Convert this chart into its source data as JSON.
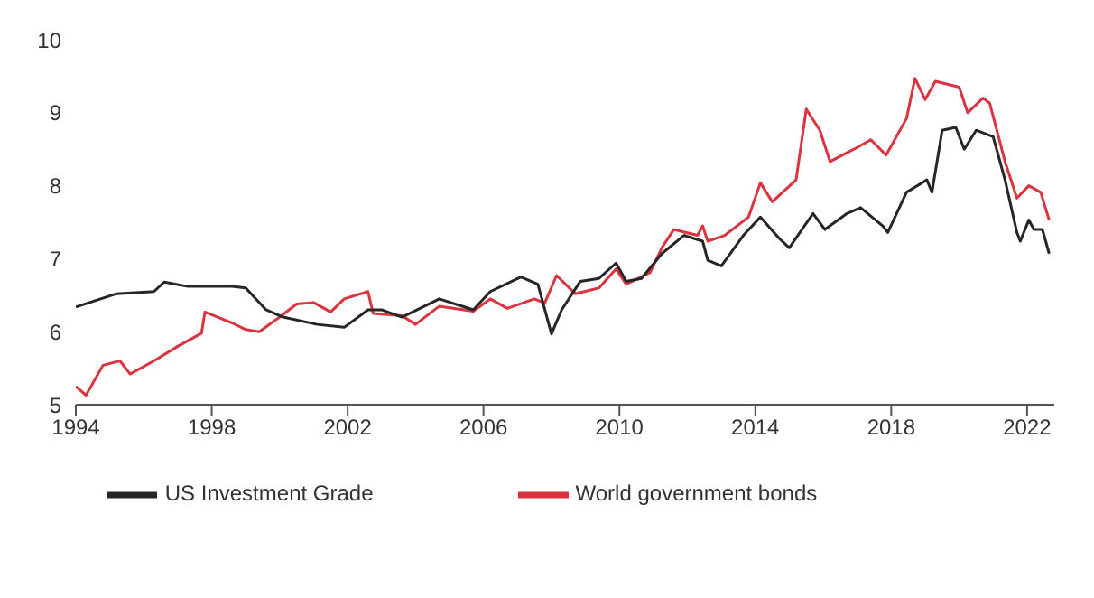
{
  "chart_data": {
    "type": "line",
    "xlim": [
      1994,
      2022.8
    ],
    "xticks": [
      1994,
      1998,
      2002,
      2006,
      2010,
      2014,
      2018,
      2022
    ],
    "ylim": [
      5,
      10
    ],
    "yticks": [
      5,
      6,
      7,
      8,
      9,
      10
    ],
    "grid": false,
    "legend": "bottom",
    "marker": "none",
    "line_style": "solid",
    "series": [
      {
        "name": "World government bonds",
        "color": "#d9343f",
        "x": [
          1994,
          1994.3,
          1994.8,
          1995.3,
          1995.6,
          1996.3,
          1997,
          1997.7,
          1997.8,
          1998.6,
          1999,
          1999.4,
          2000,
          2000.5,
          2001,
          2001.5,
          2001.9,
          2002.6,
          2002.75,
          2003.6,
          2004,
          2004.7,
          2005.7,
          2006.2,
          2006.7,
          2007.5,
          2007.8,
          2008.15,
          2008.7,
          2009.4,
          2009.9,
          2010.2,
          2010.9,
          2011.25,
          2011.6,
          2012.3,
          2012.45,
          2012.6,
          2013.1,
          2013.8,
          2014.15,
          2014.5,
          2015.2,
          2015.5,
          2015.9,
          2016.2,
          2016.9,
          2017.4,
          2017.85,
          2018.45,
          2018.7,
          2019,
          2019.3,
          2020,
          2020.25,
          2020.7,
          2020.9,
          2021.35,
          2021.7,
          2022.05,
          2022.4,
          2022.65
        ],
        "values": [
          5.25,
          5.13,
          5.54,
          5.6,
          5.42,
          5.6,
          5.8,
          5.98,
          6.27,
          6.12,
          6.03,
          6,
          6.2,
          6.38,
          6.4,
          6.27,
          6.45,
          6.55,
          6.25,
          6.22,
          6.1,
          6.35,
          6.28,
          6.45,
          6.32,
          6.45,
          6.39,
          6.77,
          6.52,
          6.6,
          6.86,
          6.65,
          6.81,
          7.15,
          7.4,
          7.32,
          7.45,
          7.24,
          7.32,
          7.57,
          8.04,
          7.78,
          8.08,
          9.05,
          8.76,
          8.33,
          8.5,
          8.63,
          8.42,
          8.92,
          9.47,
          9.18,
          9.43,
          9.35,
          9,
          9.2,
          9.13,
          8.33,
          7.83,
          8,
          7.91,
          7.53
        ]
      },
      {
        "name": "US Investment Grade",
        "color": "#262626",
        "x": [
          1994,
          1995.2,
          1996.3,
          1996.6,
          1997.3,
          1998.6,
          1999,
          1999.6,
          2000.1,
          2001.1,
          2001.9,
          2002.6,
          2003,
          2003.6,
          2004.7,
          2005.7,
          2006.2,
          2007.1,
          2007.6,
          2008,
          2008.3,
          2008.85,
          2009.4,
          2009.9,
          2010.2,
          2010.65,
          2011.25,
          2011.9,
          2012.45,
          2012.6,
          2013,
          2013.65,
          2014.15,
          2014.7,
          2015,
          2015.7,
          2016.05,
          2016.7,
          2017.1,
          2017.75,
          2017.9,
          2018.45,
          2019.05,
          2019.2,
          2019.5,
          2019.9,
          2020.15,
          2020.5,
          2021,
          2021.35,
          2021.7,
          2021.8,
          2022.05,
          2022.2,
          2022.45,
          2022.65
        ],
        "values": [
          6.34,
          6.52,
          6.55,
          6.68,
          6.62,
          6.62,
          6.6,
          6.3,
          6.2,
          6.1,
          6.06,
          6.3,
          6.3,
          6.2,
          6.45,
          6.3,
          6.55,
          6.75,
          6.65,
          5.97,
          6.3,
          6.69,
          6.73,
          6.94,
          6.69,
          6.73,
          7.07,
          7.32,
          7.24,
          6.98,
          6.9,
          7.32,
          7.57,
          7.28,
          7.15,
          7.62,
          7.4,
          7.62,
          7.7,
          7.45,
          7.36,
          7.91,
          8.08,
          7.91,
          8.76,
          8.8,
          8.5,
          8.76,
          8.67,
          8.08,
          7.36,
          7.24,
          7.53,
          7.4,
          7.4,
          7.07
        ]
      }
    ]
  }
}
